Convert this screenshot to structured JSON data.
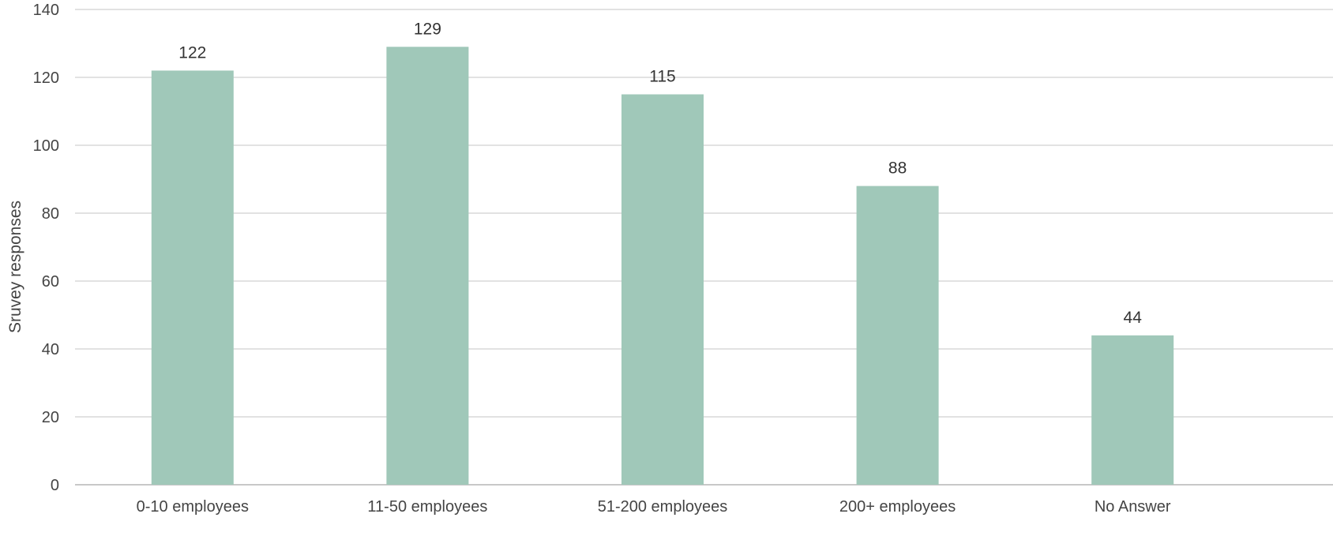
{
  "chart_data": {
    "type": "bar",
    "title": "",
    "xlabel": "",
    "ylabel": "Sruvey responses",
    "categories": [
      "0-10 employees",
      "11-50 employees",
      "51-200 employees",
      "200+ employees",
      "No Answer"
    ],
    "values": [
      122,
      129,
      115,
      88,
      44
    ],
    "data_labels": [
      "122",
      "129",
      "115",
      "88",
      "44"
    ],
    "ylim": [
      0,
      140
    ],
    "yticks": [
      "0",
      "20",
      "40",
      "60",
      "80",
      "100",
      "120",
      "140"
    ],
    "grid": true,
    "legend": "none",
    "colors": {
      "bar": "#a0c8b9",
      "grid": "#d9d9d9",
      "text": "#444444"
    }
  }
}
